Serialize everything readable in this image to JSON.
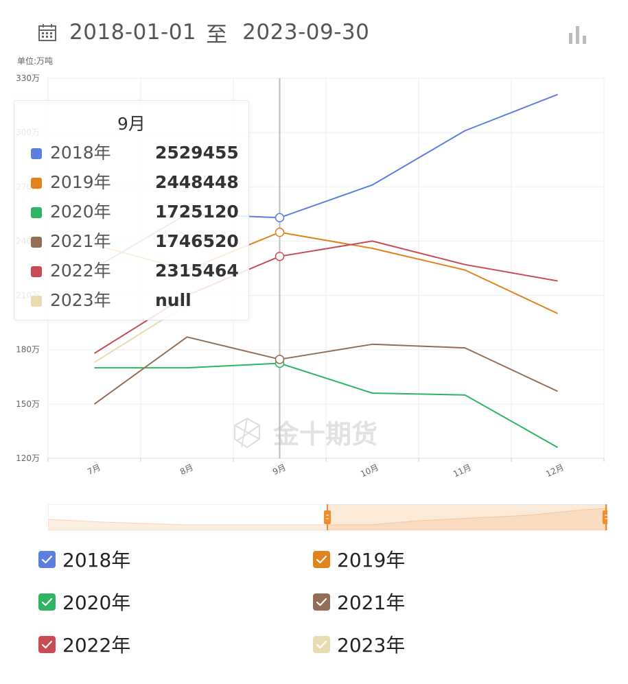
{
  "header": {
    "start_date": "2018-01-01",
    "separator": "至",
    "end_date": "2023-09-30",
    "calendar_icon": "calendar-icon",
    "chart_type_icon": "bar-chart-icon"
  },
  "unit_label": "单位:万吨",
  "watermark": "金十期货",
  "chart_data": {
    "type": "line",
    "categories": [
      "7月",
      "8月",
      "9月",
      "10月",
      "11月",
      "12月"
    ],
    "ylim": [
      1200000,
      3300000
    ],
    "yticks": [
      {
        "value": 1200000,
        "label": "120万"
      },
      {
        "value": 1500000,
        "label": "150万"
      },
      {
        "value": 1800000,
        "label": "180万"
      },
      {
        "value": 2100000,
        "label": "210万"
      },
      {
        "value": 2400000,
        "label": "240万"
      },
      {
        "value": 2700000,
        "label": "270万"
      },
      {
        "value": 3000000,
        "label": "300万"
      },
      {
        "value": 3300000,
        "label": "330万"
      }
    ],
    "grid": true,
    "series": [
      {
        "name": "2018年",
        "color": "#5b7ee0",
        "values": [
          2250000,
          2550000,
          2529455,
          2710000,
          3010000,
          3210000
        ]
      },
      {
        "name": "2019年",
        "color": "#e0831d",
        "values": [
          2380000,
          2240000,
          2448448,
          2360000,
          2240000,
          2000000
        ]
      },
      {
        "name": "2020年",
        "color": "#2db562",
        "values": [
          1700000,
          1700000,
          1725120,
          1560000,
          1550000,
          1260000
        ]
      },
      {
        "name": "2021年",
        "color": "#946d57",
        "values": [
          1500000,
          1870000,
          1746520,
          1830000,
          1810000,
          1570000
        ]
      },
      {
        "name": "2022年",
        "color": "#c94b55",
        "values": [
          1780000,
          2100000,
          2315464,
          2400000,
          2270000,
          2180000
        ]
      },
      {
        "name": "2023年",
        "color": "#e8dcb0",
        "values": [
          1730000,
          2050000,
          null,
          null,
          null,
          null
        ]
      }
    ],
    "crosshair_category": "9月",
    "legend_position": "bottom"
  },
  "tooltip": {
    "title": "9月",
    "rows": [
      {
        "name": "2018年",
        "value": "2529455",
        "color": "#5b7ee0"
      },
      {
        "name": "2019年",
        "value": "2448448",
        "color": "#e0831d"
      },
      {
        "name": "2020年",
        "value": "1725120",
        "color": "#2db562"
      },
      {
        "name": "2021年",
        "value": "1746520",
        "color": "#946d57"
      },
      {
        "name": "2022年",
        "value": "2315464",
        "color": "#c94b55"
      },
      {
        "name": "2023年",
        "value": "null",
        "color": "#e8dcb0"
      }
    ]
  },
  "zoom_slider": {
    "start_fraction": 0.5,
    "end_fraction": 1.0,
    "accent": "#f08c2e"
  },
  "legend": {
    "items": [
      {
        "label": "2018年",
        "color": "#5b7ee0",
        "checked": true
      },
      {
        "label": "2019年",
        "color": "#e0831d",
        "checked": true
      },
      {
        "label": "2020年",
        "color": "#2db562",
        "checked": true
      },
      {
        "label": "2021年",
        "color": "#946d57",
        "checked": true
      },
      {
        "label": "2022年",
        "color": "#c94b55",
        "checked": true
      },
      {
        "label": "2023年",
        "color": "#e8dcb0",
        "checked": true
      }
    ]
  }
}
